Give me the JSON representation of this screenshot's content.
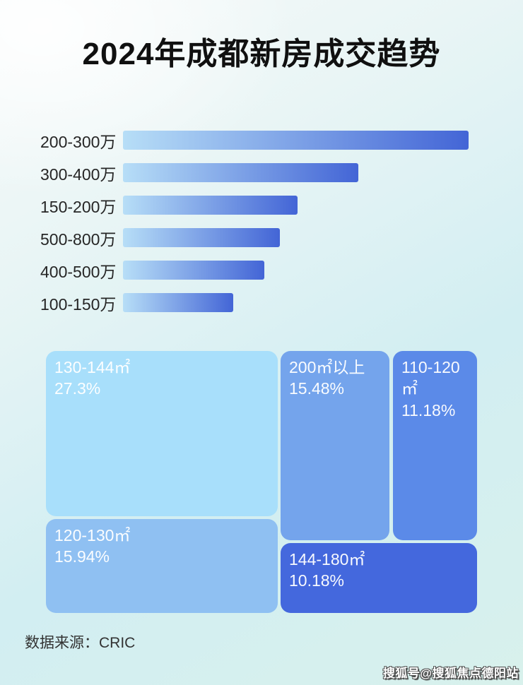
{
  "title": "2024年成都新房成交趋势",
  "footer": {
    "source_label": "数据来源：CRIC"
  },
  "watermark": "搜狐号@搜狐焦点德阳站",
  "colors": {
    "title_color": "#101010",
    "bar_gradient_start": "#b7def7",
    "bar_gradient_end": "#4365d6",
    "background_tints": [
      "#f7fafa",
      "#d2eef2",
      "#d8f1ec"
    ]
  },
  "chart_data": [
    {
      "type": "bar",
      "orientation": "horizontal",
      "title": "2024年成都新房成交趋势",
      "categories": [
        "200-300万",
        "300-400万",
        "150-200万",
        "500-800万",
        "400-500万",
        "100-150万"
      ],
      "values_pct_of_max": [
        100,
        68,
        50.5,
        45.5,
        41,
        32
      ],
      "note": "no numeric axis or data labels shown; values are relative bar lengths as percent of longest bar",
      "bar_color_start": "#b7def7",
      "bar_color_end": "#4365d6",
      "grid": false,
      "legend": false
    },
    {
      "type": "treemap",
      "items": [
        {
          "label": "130-144㎡",
          "value_pct": 27.3,
          "display": "27.3%",
          "color": "#a8dffb"
        },
        {
          "label": "120-130㎡",
          "value_pct": 15.94,
          "display": "15.94%",
          "color": "#8fc0f2"
        },
        {
          "label": "200㎡以上",
          "value_pct": 15.48,
          "display": "15.48%",
          "color": "#74a4ec"
        },
        {
          "label": "110-120㎡",
          "value_pct": 11.18,
          "display": "11.18%",
          "color": "#5b8ae8"
        },
        {
          "label": "144-180㎡",
          "value_pct": 10.18,
          "display": "10.18%",
          "color": "#4468dd"
        }
      ],
      "legend": false
    }
  ]
}
